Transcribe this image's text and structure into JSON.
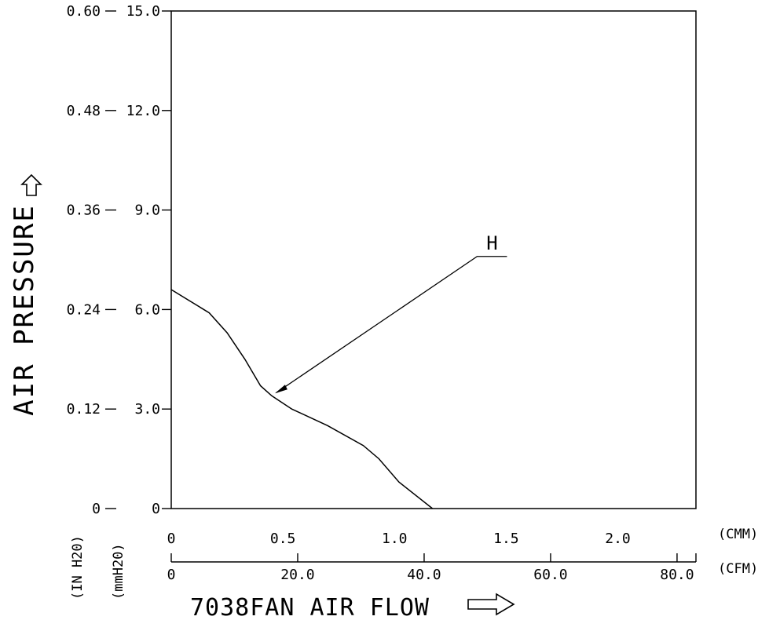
{
  "chart_data": {
    "type": "line",
    "ylabel": "AIR PRESSURE",
    "xlabel": "7038FAN AIR FLOW",
    "y_axes": [
      {
        "unit": "(IN H20)",
        "ticks": [
          "0",
          "0.12",
          "0.24",
          "0.36",
          "0.48",
          "0.60"
        ],
        "range": [
          0,
          0.6
        ]
      },
      {
        "unit": "(mmH20)",
        "ticks": [
          "0",
          "3.0",
          "6.0",
          "9.0",
          "12.0",
          "15.0"
        ],
        "range": [
          0,
          15.0
        ]
      }
    ],
    "x_axes": [
      {
        "unit": "(CMM)",
        "ticks": [
          "0",
          "0.5",
          "1.0",
          "1.5",
          "2.0"
        ],
        "values": [
          0,
          0.5,
          1.0,
          1.5,
          2.0
        ],
        "range": [
          0,
          2.35
        ]
      },
      {
        "unit": "(CFM)",
        "ticks": [
          "0",
          "20.0",
          "40.0",
          "60.0",
          "80.0"
        ],
        "values": [
          0,
          20,
          40,
          60,
          80
        ]
      }
    ],
    "series": [
      {
        "name": "H",
        "x_unit": "CMM",
        "y_unit": "mmH20",
        "points": [
          [
            0.0,
            6.6
          ],
          [
            0.17,
            5.9
          ],
          [
            0.25,
            5.3
          ],
          [
            0.33,
            4.5
          ],
          [
            0.4,
            3.7
          ],
          [
            0.45,
            3.4
          ],
          [
            0.54,
            3.0
          ],
          [
            0.7,
            2.5
          ],
          [
            0.86,
            1.9
          ],
          [
            0.93,
            1.5
          ],
          [
            1.02,
            0.8
          ],
          [
            1.17,
            0.0
          ]
        ]
      }
    ],
    "grid": false
  }
}
